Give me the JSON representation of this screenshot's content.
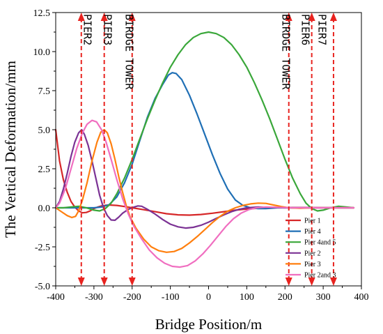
{
  "chart_data": {
    "type": "line",
    "title": "",
    "xlabel": "Bridge Position/m",
    "ylabel": "The Vertical Deformation/mm",
    "xlim": [
      -400,
      400
    ],
    "ylim": [
      -5.0,
      12.5
    ],
    "xticks": [
      -400,
      -300,
      -200,
      -100,
      0,
      100,
      200,
      300,
      400
    ],
    "yticks": [
      -5.0,
      -2.5,
      0.0,
      2.5,
      5.0,
      7.5,
      10.0,
      12.5
    ],
    "ytick_labels": [
      "-5.0",
      "-2.5",
      "0.0",
      "2.5",
      "5.0",
      "7.5",
      "10.0",
      "12.5"
    ],
    "grid": false,
    "legend_position": "bottom-right",
    "annotations": [
      {
        "label": "PIER2",
        "x": -326
      },
      {
        "label": "PIER3",
        "x": -273
      },
      {
        "label": "BIRDGE TOWER",
        "x": -217
      },
      {
        "label": "BIRDGE TOWER",
        "x": 193
      },
      {
        "label": "PIER6",
        "x": 244
      },
      {
        "label": "PIER7",
        "x": 288
      }
    ],
    "markers": [
      {
        "x": -333,
        "color": "#e8231f"
      },
      {
        "x": -273,
        "color": "#e8231f"
      },
      {
        "x": -200,
        "color": "#e8231f"
      },
      {
        "x": 210,
        "color": "#e8231f"
      },
      {
        "x": 270,
        "color": "#e8231f"
      },
      {
        "x": 327,
        "color": "#e8231f"
      }
    ],
    "series": [
      {
        "name": "Pier 1",
        "color": "#d62728",
        "points": [
          [
            -400,
            5.0
          ],
          [
            -390,
            3.0
          ],
          [
            -380,
            1.8
          ],
          [
            -370,
            1.0
          ],
          [
            -360,
            0.4
          ],
          [
            -350,
            0.05
          ],
          [
            -340,
            -0.2
          ],
          [
            -330,
            -0.32
          ],
          [
            -320,
            -0.3
          ],
          [
            -310,
            -0.2
          ],
          [
            -300,
            -0.05
          ],
          [
            -290,
            0.05
          ],
          [
            -280,
            0.12
          ],
          [
            -270,
            0.16
          ],
          [
            -260,
            0.18
          ],
          [
            -240,
            0.15
          ],
          [
            -220,
            0.08
          ],
          [
            -200,
            0.0
          ],
          [
            -170,
            -0.12
          ],
          [
            -140,
            -0.25
          ],
          [
            -110,
            -0.38
          ],
          [
            -80,
            -0.45
          ],
          [
            -50,
            -0.47
          ],
          [
            -20,
            -0.43
          ],
          [
            10,
            -0.35
          ],
          [
            40,
            -0.25
          ],
          [
            70,
            -0.15
          ],
          [
            100,
            -0.08
          ],
          [
            130,
            -0.03
          ],
          [
            160,
            0.0
          ],
          [
            200,
            0.02
          ],
          [
            250,
            0.02
          ],
          [
            300,
            0.01
          ],
          [
            350,
            0.0
          ],
          [
            380,
            0.0
          ]
        ]
      },
      {
        "name": "Pier 4",
        "color": "#1f6fb5",
        "points": [
          [
            -400,
            0.0
          ],
          [
            -350,
            0.0
          ],
          [
            -300,
            0.0
          ],
          [
            -280,
            0.05
          ],
          [
            -260,
            0.2
          ],
          [
            -240,
            0.7
          ],
          [
            -220,
            1.6
          ],
          [
            -200,
            2.8
          ],
          [
            -180,
            4.3
          ],
          [
            -160,
            5.8
          ],
          [
            -140,
            7.0
          ],
          [
            -120,
            7.9
          ],
          [
            -105,
            8.5
          ],
          [
            -95,
            8.65
          ],
          [
            -85,
            8.6
          ],
          [
            -70,
            8.2
          ],
          [
            -50,
            7.2
          ],
          [
            -30,
            6.0
          ],
          [
            -10,
            4.7
          ],
          [
            10,
            3.4
          ],
          [
            30,
            2.2
          ],
          [
            50,
            1.2
          ],
          [
            70,
            0.5
          ],
          [
            90,
            0.15
          ],
          [
            110,
            0.0
          ],
          [
            130,
            -0.05
          ],
          [
            150,
            -0.05
          ],
          [
            180,
            0.0
          ],
          [
            250,
            0.0
          ],
          [
            380,
            0.0
          ]
        ]
      },
      {
        "name": "Pier 4and 5",
        "color": "#3aa73a",
        "points": [
          [
            -400,
            0.0
          ],
          [
            -380,
            0.0
          ],
          [
            -360,
            0.05
          ],
          [
            -340,
            0.1
          ],
          [
            -320,
            0.0
          ],
          [
            -300,
            -0.15
          ],
          [
            -285,
            -0.2
          ],
          [
            -270,
            -0.05
          ],
          [
            -255,
            0.3
          ],
          [
            -240,
            0.9
          ],
          [
            -220,
            1.9
          ],
          [
            -200,
            3.1
          ],
          [
            -180,
            4.4
          ],
          [
            -160,
            5.7
          ],
          [
            -140,
            6.9
          ],
          [
            -120,
            8.0
          ],
          [
            -100,
            9.0
          ],
          [
            -80,
            9.8
          ],
          [
            -60,
            10.45
          ],
          [
            -40,
            10.9
          ],
          [
            -20,
            11.15
          ],
          [
            0,
            11.25
          ],
          [
            20,
            11.15
          ],
          [
            40,
            10.9
          ],
          [
            60,
            10.45
          ],
          [
            80,
            9.8
          ],
          [
            100,
            9.0
          ],
          [
            120,
            8.0
          ],
          [
            140,
            6.9
          ],
          [
            160,
            5.7
          ],
          [
            180,
            4.4
          ],
          [
            200,
            3.1
          ],
          [
            220,
            1.9
          ],
          [
            240,
            0.9
          ],
          [
            255,
            0.3
          ],
          [
            270,
            -0.05
          ],
          [
            285,
            -0.2
          ],
          [
            300,
            -0.15
          ],
          [
            320,
            0.0
          ],
          [
            340,
            0.1
          ],
          [
            360,
            0.05
          ],
          [
            380,
            0.0
          ]
        ]
      },
      {
        "name": "Pier 2",
        "color": "#7b3294",
        "points": [
          [
            -400,
            0.0
          ],
          [
            -390,
            0.4
          ],
          [
            -380,
            1.2
          ],
          [
            -370,
            2.2
          ],
          [
            -360,
            3.3
          ],
          [
            -350,
            4.2
          ],
          [
            -340,
            4.8
          ],
          [
            -332,
            5.0
          ],
          [
            -325,
            4.7
          ],
          [
            -315,
            4.0
          ],
          [
            -305,
            3.0
          ],
          [
            -295,
            1.9
          ],
          [
            -285,
            0.8
          ],
          [
            -275,
            0.0
          ],
          [
            -265,
            -0.5
          ],
          [
            -255,
            -0.78
          ],
          [
            -245,
            -0.8
          ],
          [
            -235,
            -0.6
          ],
          [
            -225,
            -0.35
          ],
          [
            -210,
            -0.1
          ],
          [
            -195,
            0.05
          ],
          [
            -185,
            0.12
          ],
          [
            -175,
            0.1
          ],
          [
            -160,
            -0.1
          ],
          [
            -140,
            -0.4
          ],
          [
            -120,
            -0.75
          ],
          [
            -100,
            -1.05
          ],
          [
            -80,
            -1.22
          ],
          [
            -60,
            -1.3
          ],
          [
            -40,
            -1.25
          ],
          [
            -20,
            -1.12
          ],
          [
            0,
            -0.92
          ],
          [
            20,
            -0.68
          ],
          [
            40,
            -0.45
          ],
          [
            60,
            -0.25
          ],
          [
            80,
            -0.1
          ],
          [
            100,
            0.0
          ],
          [
            130,
            0.05
          ],
          [
            160,
            0.03
          ],
          [
            200,
            0.0
          ],
          [
            380,
            0.0
          ]
        ]
      },
      {
        "name": "Pier 3",
        "color": "#ff7f0e",
        "points": [
          [
            -400,
            0.0
          ],
          [
            -385,
            -0.25
          ],
          [
            -370,
            -0.5
          ],
          [
            -358,
            -0.62
          ],
          [
            -348,
            -0.55
          ],
          [
            -340,
            -0.2
          ],
          [
            -330,
            0.5
          ],
          [
            -318,
            1.6
          ],
          [
            -305,
            3.0
          ],
          [
            -292,
            4.2
          ],
          [
            -282,
            4.85
          ],
          [
            -273,
            5.0
          ],
          [
            -265,
            4.8
          ],
          [
            -255,
            4.1
          ],
          [
            -245,
            3.1
          ],
          [
            -235,
            2.0
          ],
          [
            -225,
            1.0
          ],
          [
            -215,
            0.1
          ],
          [
            -205,
            -0.6
          ],
          [
            -190,
            -1.3
          ],
          [
            -170,
            -2.0
          ],
          [
            -150,
            -2.5
          ],
          [
            -130,
            -2.75
          ],
          [
            -110,
            -2.85
          ],
          [
            -90,
            -2.8
          ],
          [
            -70,
            -2.6
          ],
          [
            -50,
            -2.25
          ],
          [
            -30,
            -1.85
          ],
          [
            -10,
            -1.4
          ],
          [
            10,
            -0.95
          ],
          [
            30,
            -0.55
          ],
          [
            50,
            -0.22
          ],
          [
            70,
            0.0
          ],
          [
            90,
            0.15
          ],
          [
            110,
            0.25
          ],
          [
            130,
            0.3
          ],
          [
            150,
            0.28
          ],
          [
            170,
            0.18
          ],
          [
            190,
            0.08
          ],
          [
            210,
            0.0
          ],
          [
            240,
            -0.03
          ],
          [
            270,
            0.0
          ],
          [
            380,
            0.0
          ]
        ]
      },
      {
        "name": "Pier 2and 3",
        "color": "#f06ec0",
        "points": [
          [
            -400,
            0.0
          ],
          [
            -390,
            0.3
          ],
          [
            -375,
            1.2
          ],
          [
            -360,
            2.5
          ],
          [
            -345,
            3.8
          ],
          [
            -330,
            4.8
          ],
          [
            -318,
            5.35
          ],
          [
            -305,
            5.6
          ],
          [
            -293,
            5.5
          ],
          [
            -280,
            5.0
          ],
          [
            -268,
            4.2
          ],
          [
            -255,
            3.1
          ],
          [
            -240,
            1.8
          ],
          [
            -225,
            0.6
          ],
          [
            -210,
            -0.4
          ],
          [
            -195,
            -1.2
          ],
          [
            -175,
            -2.0
          ],
          [
            -155,
            -2.7
          ],
          [
            -135,
            -3.2
          ],
          [
            -115,
            -3.55
          ],
          [
            -95,
            -3.75
          ],
          [
            -75,
            -3.8
          ],
          [
            -55,
            -3.7
          ],
          [
            -35,
            -3.4
          ],
          [
            -15,
            -2.95
          ],
          [
            5,
            -2.4
          ],
          [
            25,
            -1.8
          ],
          [
            45,
            -1.2
          ],
          [
            65,
            -0.7
          ],
          [
            85,
            -0.35
          ],
          [
            105,
            -0.12
          ],
          [
            125,
            0.0
          ],
          [
            150,
            0.05
          ],
          [
            180,
            0.03
          ],
          [
            220,
            0.0
          ],
          [
            380,
            0.0
          ]
        ]
      }
    ]
  }
}
